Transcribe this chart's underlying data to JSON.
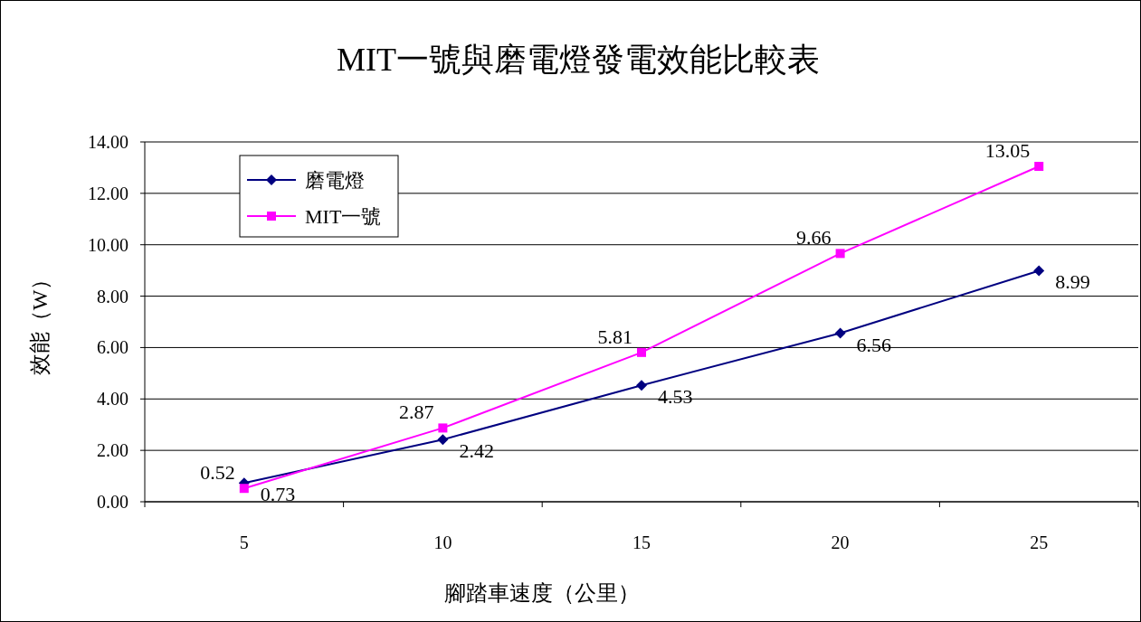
{
  "chart_data": {
    "type": "line",
    "title": "MIT一號與磨電燈發電效能比較表",
    "xlabel": "腳踏車速度（公里）",
    "ylabel": "效能（W）",
    "categories": [
      "5",
      "10",
      "15",
      "20",
      "25"
    ],
    "series": [
      {
        "name": "磨電燈",
        "color": "#000080",
        "marker": "diamond",
        "values": [
          0.73,
          2.42,
          4.53,
          6.56,
          8.99
        ]
      },
      {
        "name": "MIT一號",
        "color": "#ff00ff",
        "marker": "square",
        "values": [
          0.52,
          2.87,
          5.81,
          9.66,
          13.05
        ]
      }
    ],
    "ylim": [
      0,
      14
    ],
    "yticks": [
      {
        "value": 0,
        "label": "0.00"
      },
      {
        "value": 2,
        "label": "2.00"
      },
      {
        "value": 4,
        "label": "4.00"
      },
      {
        "value": 6,
        "label": "6.00"
      },
      {
        "value": 8,
        "label": "8.00"
      },
      {
        "value": 10,
        "label": "10.00"
      },
      {
        "value": 12,
        "label": "12.00"
      },
      {
        "value": 14,
        "label": "14.00"
      }
    ],
    "grid": "y",
    "legend": "top left",
    "data_labels": true
  }
}
